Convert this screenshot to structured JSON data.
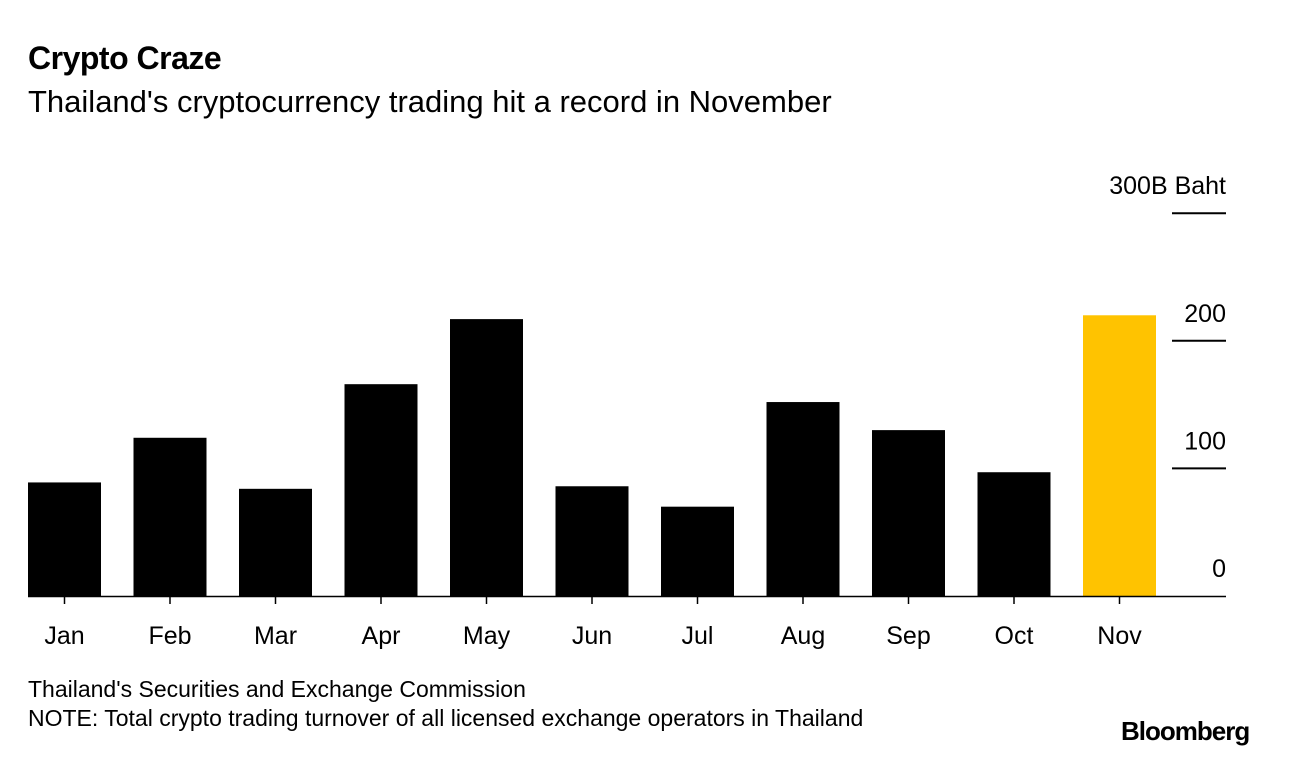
{
  "header": {
    "title": "Crypto Craze",
    "subtitle": "Thailand's cryptocurrency trading hit a record in November"
  },
  "footer": {
    "source": "Thailand's Securities and Exchange Commission",
    "note": "NOTE: Total crypto trading turnover of all licensed exchange operators in Thailand",
    "brand": "Bloomberg"
  },
  "colors": {
    "bar": "#000000",
    "highlight": "#ffc300",
    "text": "#000000",
    "background": "#ffffff"
  },
  "chart_data": {
    "type": "bar",
    "title": "Crypto Craze",
    "subtitle": "Thailand's cryptocurrency trading hit a record in November",
    "categories": [
      "Jan",
      "Feb",
      "Mar",
      "Apr",
      "May",
      "Jun",
      "Jul",
      "Aug",
      "Sep",
      "Oct",
      "Nov"
    ],
    "values": [
      89,
      124,
      84,
      166,
      217,
      86,
      70,
      152,
      130,
      97,
      220
    ],
    "highlight_index": 10,
    "ylim": [
      0,
      300
    ],
    "yticks": [
      0,
      100,
      200,
      300
    ],
    "ytick_labels": [
      "0",
      "100",
      "200",
      "300B Baht"
    ],
    "ylabel": "",
    "xlabel": "",
    "y_axis_side": "right",
    "grid": false,
    "legend": "none"
  }
}
